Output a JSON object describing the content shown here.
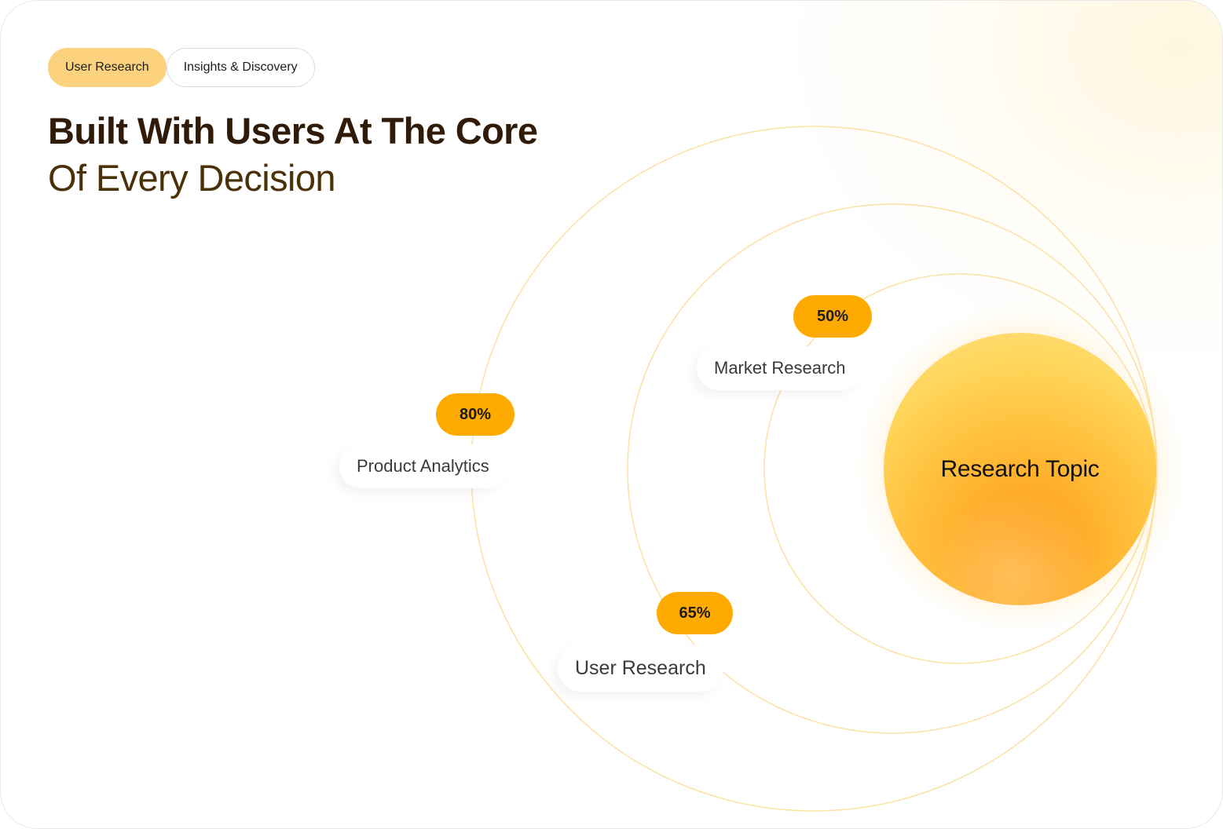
{
  "tabs": [
    {
      "label": "User Research",
      "active": true
    },
    {
      "label": "Insights & Discovery",
      "active": false
    }
  ],
  "headline": {
    "line1": "Built With Users At The Core",
    "line2": "Of Every Decision"
  },
  "diagram": {
    "core": {
      "label": "Research Topic"
    },
    "items": [
      {
        "label": "Market Research",
        "percent": "50%"
      },
      {
        "label": "Product Analytics",
        "percent": "80%"
      },
      {
        "label": "User Research",
        "percent": "65%"
      }
    ]
  },
  "colors": {
    "accent": "#ffaa00",
    "chip_active": "#fdd27f",
    "ring": "#fbe3a8",
    "headline_bold": "#2f1b07",
    "headline_light": "#4a3108"
  }
}
